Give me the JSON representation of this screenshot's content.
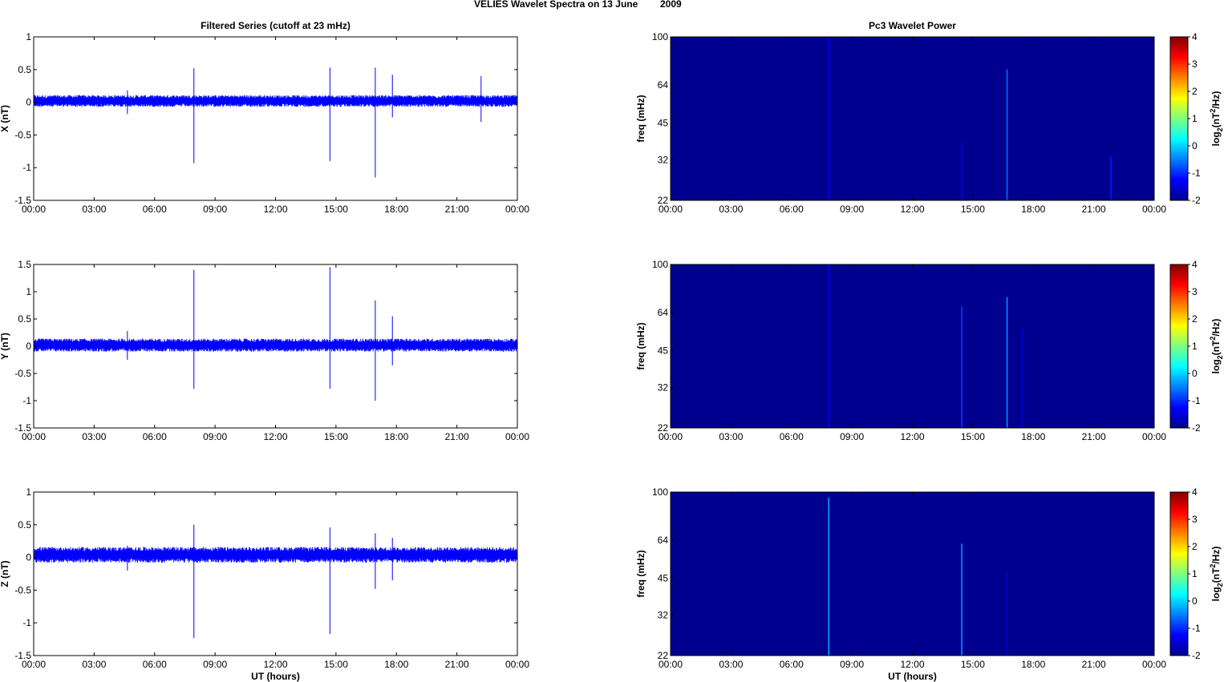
{
  "figure": {
    "title_left": "VELIES Wavelet Spectra on 13 June",
    "title_right": "2009"
  },
  "colors": {
    "trace": "#0000ff",
    "spectrum_bg": "#00008f",
    "colorbar": [
      "#00008f",
      "#0000ff",
      "#0080ff",
      "#00ffff",
      "#80ff80",
      "#ffff00",
      "#ff8000",
      "#ff0000",
      "#800000"
    ]
  },
  "chart_data": [
    {
      "type": "line",
      "title": "Filtered Series (cutoff at 23 mHz)",
      "xlabel": "",
      "ylabel": "X (nT)",
      "x_ticks": [
        "00:00",
        "03:00",
        "06:00",
        "09:00",
        "12:00",
        "15:00",
        "18:00",
        "21:00",
        "00:00"
      ],
      "xlim": [
        0,
        24
      ],
      "ylim": [
        -1.5,
        1
      ],
      "y_ticks": [
        1,
        0.5,
        0,
        -0.5,
        -1,
        -1.5
      ],
      "noise_band": [
        -0.07,
        0.11
      ],
      "spikes": [
        {
          "t": 4.65,
          "min": -0.18,
          "max": 0.18
        },
        {
          "t": 7.95,
          "min": -0.93,
          "max": 0.52
        },
        {
          "t": 14.7,
          "min": -0.9,
          "max": 0.53
        },
        {
          "t": 16.95,
          "min": -1.15,
          "max": 0.53
        },
        {
          "t": 17.8,
          "min": -0.23,
          "max": 0.42
        },
        {
          "t": 22.2,
          "min": -0.3,
          "max": 0.4
        }
      ]
    },
    {
      "type": "line",
      "xlabel": "",
      "ylabel": "Y (nT)",
      "x_ticks": [
        "00:00",
        "03:00",
        "06:00",
        "09:00",
        "12:00",
        "15:00",
        "18:00",
        "21:00",
        "00:00"
      ],
      "xlim": [
        0,
        24
      ],
      "ylim": [
        -1.5,
        1.5
      ],
      "y_ticks": [
        1.5,
        1,
        0.5,
        0,
        -0.5,
        -1,
        -1.5
      ],
      "noise_band": [
        -0.1,
        0.14
      ],
      "spikes": [
        {
          "t": 4.65,
          "min": -0.25,
          "max": 0.28
        },
        {
          "t": 7.95,
          "min": -0.78,
          "max": 1.4
        },
        {
          "t": 14.7,
          "min": -0.78,
          "max": 1.45
        },
        {
          "t": 16.95,
          "min": -1.0,
          "max": 0.84
        },
        {
          "t": 17.8,
          "min": -0.35,
          "max": 0.55
        }
      ]
    },
    {
      "type": "line",
      "xlabel": "UT (hours)",
      "ylabel": "Z (nT)",
      "x_ticks": [
        "00:00",
        "03:00",
        "06:00",
        "09:00",
        "12:00",
        "15:00",
        "18:00",
        "21:00",
        "00:00"
      ],
      "xlim": [
        0,
        24
      ],
      "ylim": [
        -1.5,
        1
      ],
      "y_ticks": [
        1,
        0.5,
        0,
        -0.5,
        -1,
        -1.5
      ],
      "noise_band": [
        -0.08,
        0.16
      ],
      "spikes": [
        {
          "t": 4.65,
          "min": -0.2,
          "max": 0.18
        },
        {
          "t": 7.95,
          "min": -1.23,
          "max": 0.5
        },
        {
          "t": 14.7,
          "min": -1.17,
          "max": 0.46
        },
        {
          "t": 16.95,
          "min": -0.48,
          "max": 0.37
        },
        {
          "t": 17.8,
          "min": -0.35,
          "max": 0.3
        }
      ]
    },
    {
      "type": "heatmap",
      "title": "Pc3 Wavelet Power",
      "xlabel": "",
      "ylabel": "freq (mHz)",
      "x_ticks": [
        "00:00",
        "03:00",
        "06:00",
        "09:00",
        "12:00",
        "15:00",
        "18:00",
        "21:00",
        "00:00"
      ],
      "xlim": [
        0,
        24
      ],
      "ylim": [
        22,
        100
      ],
      "y_scale": "log",
      "y_ticks": [
        100,
        64,
        45,
        32,
        22
      ],
      "colorbar": {
        "label": "log2(nT^2/Hz)",
        "range": [
          -2,
          4
        ],
        "ticks": [
          4,
          3,
          2,
          1,
          0,
          -1,
          -2
        ]
      },
      "background_value": -2,
      "streaks": [
        {
          "t": 7.85,
          "f_top": 100,
          "value": -1.3
        },
        {
          "t": 14.45,
          "f_top": 38,
          "value": -1.4
        },
        {
          "t": 16.7,
          "f_top": 74,
          "value": -0.6
        },
        {
          "t": 21.85,
          "f_top": 33,
          "value": -1.1
        }
      ]
    },
    {
      "type": "heatmap",
      "xlabel": "",
      "ylabel": "freq (mHz)",
      "x_ticks": [
        "00:00",
        "03:00",
        "06:00",
        "09:00",
        "12:00",
        "15:00",
        "18:00",
        "21:00",
        "00:00"
      ],
      "xlim": [
        0,
        24
      ],
      "ylim": [
        22,
        100
      ],
      "y_scale": "log",
      "y_ticks": [
        100,
        64,
        45,
        32,
        22
      ],
      "colorbar": {
        "label": "log2(nT^2/Hz)",
        "range": [
          -2,
          4
        ],
        "ticks": [
          4,
          3,
          2,
          1,
          0,
          -1,
          -2
        ]
      },
      "background_value": -2,
      "streaks": [
        {
          "t": 7.85,
          "f_top": 100,
          "value": -1.3
        },
        {
          "t": 14.45,
          "f_top": 68,
          "value": -0.9
        },
        {
          "t": 16.7,
          "f_top": 74,
          "value": -0.4
        },
        {
          "t": 17.45,
          "f_top": 55,
          "value": -1.5
        }
      ]
    },
    {
      "type": "heatmap",
      "xlabel": "UT (hours)",
      "ylabel": "freq (mHz)",
      "x_ticks": [
        "00:00",
        "03:00",
        "06:00",
        "09:00",
        "12:00",
        "15:00",
        "18:00",
        "21:00",
        "00:00"
      ],
      "xlim": [
        0,
        24
      ],
      "ylim": [
        22,
        100
      ],
      "y_scale": "log",
      "y_ticks": [
        100,
        64,
        45,
        32,
        22
      ],
      "colorbar": {
        "label": "log2(nT^2/Hz)",
        "range": [
          -2,
          4
        ],
        "ticks": [
          4,
          3,
          2,
          1,
          0,
          -1,
          -2
        ]
      },
      "background_value": -2,
      "streaks": [
        {
          "t": 7.85,
          "f_top": 95,
          "value": -0.3
        },
        {
          "t": 14.45,
          "f_top": 62,
          "value": -0.4
        },
        {
          "t": 16.7,
          "f_top": 48,
          "value": -1.5
        }
      ]
    }
  ]
}
